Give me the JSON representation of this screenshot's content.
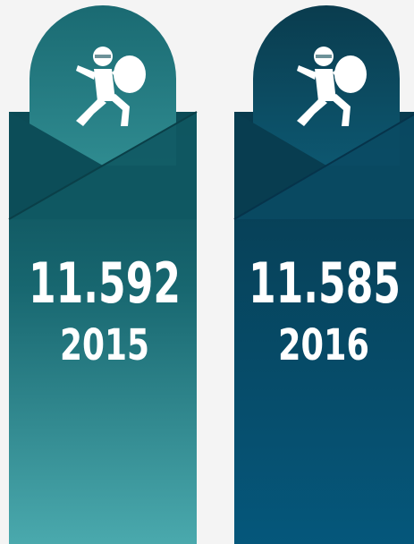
{
  "cards": [
    {
      "value": "11.592",
      "year": "2015"
    },
    {
      "value": "11.585",
      "year": "2016"
    }
  ]
}
